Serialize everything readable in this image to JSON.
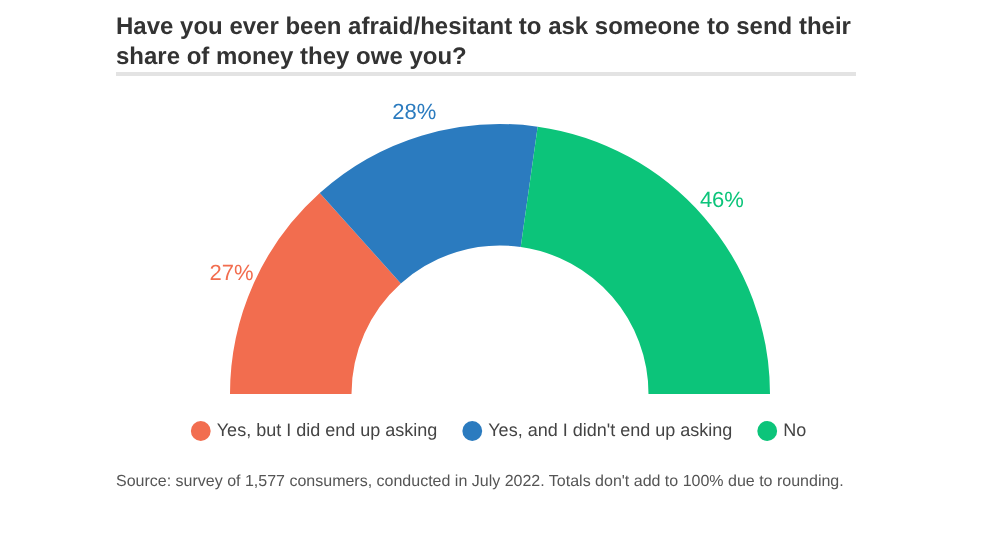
{
  "chart_data": {
    "type": "donut",
    "title": "Have you ever been afraid/hesitant to ask someone to send their share of money they owe you?",
    "categories": [
      "Yes, but I did end up asking",
      "Yes, and I didn't end up asking",
      "No"
    ],
    "values": [
      27,
      28,
      46
    ],
    "value_labels": [
      "27%",
      "28%",
      "46%"
    ],
    "colors": [
      "#f26d4f",
      "#2b7bbf",
      "#0cc47a"
    ],
    "legend": "bottom",
    "annotations": [
      "Source: survey of 1,577 consumers, conducted in July 2022. Totals don't add to 100% due to rounding."
    ]
  }
}
